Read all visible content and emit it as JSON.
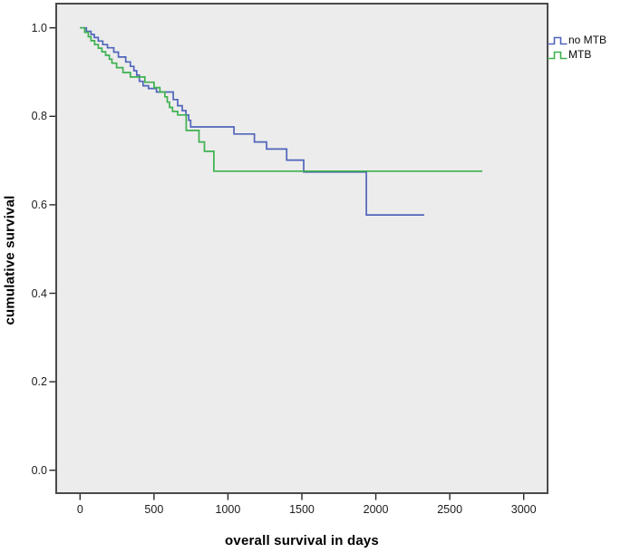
{
  "chart_data": {
    "type": "line",
    "subtype": "kaplan-meier-step",
    "title": "",
    "xlabel": "overall survival in days",
    "ylabel": "cumulative survival",
    "xlim": [
      -160,
      3170
    ],
    "ylim": [
      -0.055,
      1.055
    ],
    "grid": false,
    "legend_position": "outside-top-right",
    "x_ticks": [
      0,
      500,
      1000,
      1500,
      2000,
      2500,
      3000
    ],
    "x_tick_labels": [
      "0",
      "500",
      "1000",
      "1500",
      "2000",
      "2500",
      "3000"
    ],
    "y_ticks": [
      0.0,
      0.2,
      0.4,
      0.6,
      0.8,
      1.0
    ],
    "y_tick_labels": [
      "0.0",
      "0.2",
      "0.4",
      "0.6",
      "0.8",
      "1.0"
    ],
    "series": [
      {
        "name": "no MTB",
        "color": "#5065ba",
        "end_day": 2327,
        "points": [
          [
            0,
            1.0
          ],
          [
            43,
            0.992
          ],
          [
            74,
            0.985
          ],
          [
            96,
            0.978
          ],
          [
            123,
            0.97
          ],
          [
            154,
            0.962
          ],
          [
            185,
            0.955
          ],
          [
            228,
            0.945
          ],
          [
            259,
            0.934
          ],
          [
            309,
            0.923
          ],
          [
            340,
            0.913
          ],
          [
            364,
            0.903
          ],
          [
            383,
            0.893
          ],
          [
            401,
            0.879
          ],
          [
            426,
            0.869
          ],
          [
            463,
            0.863
          ],
          [
            517,
            0.855
          ],
          [
            630,
            0.838
          ],
          [
            660,
            0.824
          ],
          [
            691,
            0.813
          ],
          [
            716,
            0.803
          ],
          [
            735,
            0.791
          ],
          [
            748,
            0.776
          ],
          [
            1041,
            0.76
          ],
          [
            1179,
            0.742
          ],
          [
            1261,
            0.726
          ],
          [
            1397,
            0.701
          ],
          [
            1512,
            0.674
          ],
          [
            1936,
            0.577
          ]
        ]
      },
      {
        "name": "MTB",
        "color": "#3db14e",
        "end_day": 2720,
        "points": [
          [
            0,
            1.0
          ],
          [
            31,
            0.99
          ],
          [
            56,
            0.98
          ],
          [
            74,
            0.971
          ],
          [
            99,
            0.962
          ],
          [
            123,
            0.954
          ],
          [
            148,
            0.946
          ],
          [
            173,
            0.938
          ],
          [
            198,
            0.929
          ],
          [
            216,
            0.92
          ],
          [
            247,
            0.91
          ],
          [
            290,
            0.899
          ],
          [
            340,
            0.889
          ],
          [
            438,
            0.877
          ],
          [
            500,
            0.865
          ],
          [
            540,
            0.855
          ],
          [
            574,
            0.844
          ],
          [
            590,
            0.832
          ],
          [
            605,
            0.82
          ],
          [
            625,
            0.811
          ],
          [
            660,
            0.803
          ],
          [
            718,
            0.768
          ],
          [
            804,
            0.742
          ],
          [
            841,
            0.721
          ],
          [
            905,
            0.676
          ]
        ]
      }
    ]
  },
  "axes": {
    "x_title": "overall survival in days",
    "y_title": "cumulative survival"
  },
  "legend": {
    "entries": [
      {
        "label": "no MTB",
        "color": "#5065ba"
      },
      {
        "label": "MTB",
        "color": "#3db14e"
      }
    ]
  }
}
